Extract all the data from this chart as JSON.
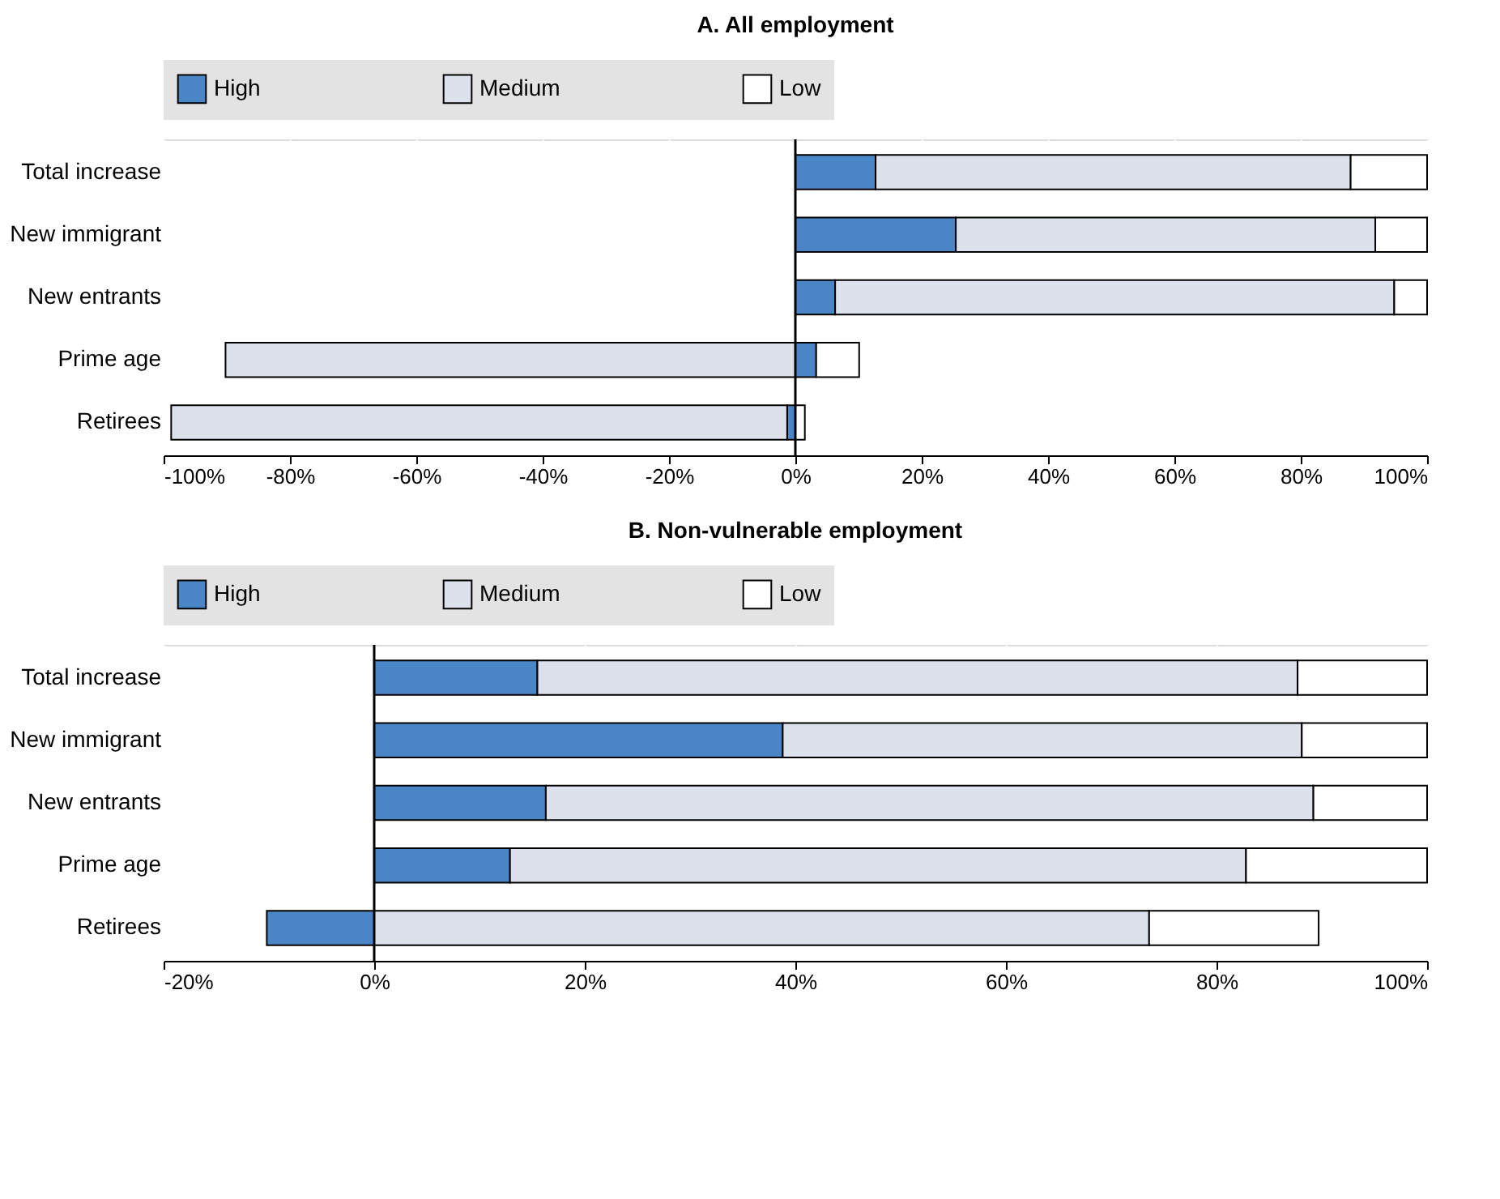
{
  "chart_data": [
    {
      "type": "bar",
      "orientation": "horizontal",
      "stacked": true,
      "title": "A. All employment",
      "categories": [
        "Total increase",
        "New immigrant",
        "New entrants",
        "Prime age",
        "Retirees"
      ],
      "series": [
        {
          "name": "High",
          "color": "#4a86c5",
          "values": [
            12.7,
            25.4,
            6.3,
            3.3,
            -1.3
          ]
        },
        {
          "name": "Medium",
          "color": "#dde1ec",
          "values": [
            75.2,
            66.4,
            88.5,
            -90.2,
            -97.5
          ]
        },
        {
          "name": "Low",
          "color": "#ffffff",
          "values": [
            12.1,
            8.2,
            5.2,
            6.8,
            1.5
          ]
        }
      ],
      "xlim": [
        -100,
        100
      ],
      "xticks": [
        {
          "value": -100,
          "label": "-100%"
        },
        {
          "value": -80,
          "label": "-80%"
        },
        {
          "value": -60,
          "label": "-60%"
        },
        {
          "value": -40,
          "label": "-40%"
        },
        {
          "value": -20,
          "label": "-20%"
        },
        {
          "value": 0,
          "label": "0%"
        },
        {
          "value": 20,
          "label": "20%"
        },
        {
          "value": 40,
          "label": "40%"
        },
        {
          "value": 60,
          "label": "60%"
        },
        {
          "value": 80,
          "label": "80%"
        },
        {
          "value": 100,
          "label": "100%"
        }
      ],
      "grid": "x",
      "legend": "top"
    },
    {
      "type": "bar",
      "orientation": "horizontal",
      "stacked": true,
      "title": "B. Non-vulnerable employment",
      "categories": [
        "Total increase",
        "New immigrant",
        "New entrants",
        "Prime age",
        "Retirees"
      ],
      "series": [
        {
          "name": "High",
          "color": "#4a86c5",
          "values": [
            15.5,
            38.8,
            16.3,
            12.9,
            -10.2
          ]
        },
        {
          "name": "Medium",
          "color": "#dde1ec",
          "values": [
            72.2,
            49.3,
            72.9,
            69.9,
            73.6
          ]
        },
        {
          "name": "Low",
          "color": "#ffffff",
          "values": [
            12.3,
            11.9,
            10.8,
            17.2,
            16.1
          ]
        }
      ],
      "xlim": [
        -20,
        100
      ],
      "xticks": [
        {
          "value": -20,
          "label": "-20%"
        },
        {
          "value": 0,
          "label": "0%"
        },
        {
          "value": 20,
          "label": "20%"
        },
        {
          "value": 40,
          "label": "40%"
        },
        {
          "value": 60,
          "label": "60%"
        },
        {
          "value": 80,
          "label": "80%"
        },
        {
          "value": 100,
          "label": "100%"
        }
      ],
      "grid": "x",
      "legend": "top"
    }
  ]
}
